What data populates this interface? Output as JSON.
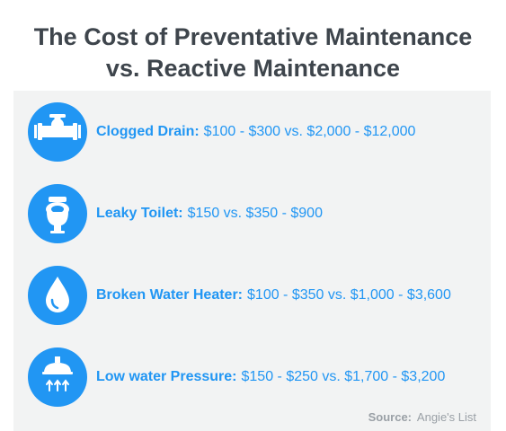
{
  "title": {
    "line1": "The Cost of Preventative Maintenance",
    "line2": "vs. Reactive Maintenance"
  },
  "colors": {
    "accent": "#2196f3",
    "title": "#3e454c",
    "panel": "#f2f3f3",
    "source": "#9aa0a6"
  },
  "items": [
    {
      "icon": "pipe-valve-icon",
      "label": "Clogged Drain:",
      "value": "$100 - $300 vs. $2,000 - $12,000"
    },
    {
      "icon": "toilet-icon",
      "label": "Leaky Toilet:",
      "value": "$150 vs. $350 - $900"
    },
    {
      "icon": "water-drop-icon",
      "label": "Broken Water Heater:",
      "value": "$100 - $350 vs. $1,000 - $3,600"
    },
    {
      "icon": "shower-head-icon",
      "label": "Low water Pressure:",
      "value": "$150 - $250 vs. $1,700 - $3,200"
    }
  ],
  "source": {
    "label": "Source:",
    "value": "Angie's List"
  }
}
